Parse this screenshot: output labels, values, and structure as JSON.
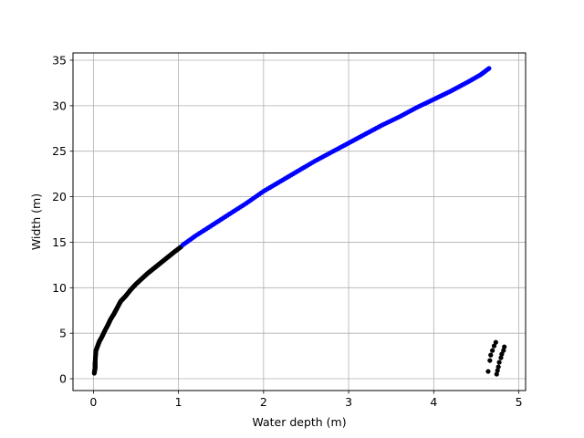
{
  "chart_data": {
    "type": "scatter",
    "title": "",
    "xlabel": "Water depth (m)",
    "ylabel": "Width (m)",
    "xlim": [
      -0.24,
      5.08
    ],
    "ylim": [
      -1.3,
      35.8
    ],
    "xticks": [
      0,
      1,
      2,
      3,
      4,
      5
    ],
    "yticks": [
      0,
      5,
      10,
      15,
      20,
      25,
      30,
      35
    ],
    "grid": true,
    "legend": "none",
    "colors": {
      "series_low": "#000000",
      "series_fit": "#0000ff",
      "grid": "#b0b0b0",
      "axes": "#000000"
    },
    "series": [
      {
        "color": "#000000",
        "points": [
          [
            0.01,
            0.6
          ],
          [
            0.02,
            1.2
          ],
          [
            0.02,
            1.8
          ],
          [
            0.03,
            3.1
          ],
          [
            0.05,
            3.6
          ],
          [
            0.07,
            4.1
          ],
          [
            0.1,
            4.6
          ],
          [
            0.13,
            5.2
          ],
          [
            0.17,
            5.9
          ],
          [
            0.2,
            6.5
          ],
          [
            0.24,
            7.1
          ],
          [
            0.28,
            7.8
          ],
          [
            0.32,
            8.5
          ],
          [
            0.38,
            9.1
          ],
          [
            0.44,
            9.8
          ],
          [
            0.5,
            10.4
          ],
          [
            0.57,
            11.0
          ],
          [
            0.64,
            11.6
          ],
          [
            0.72,
            12.2
          ],
          [
            0.8,
            12.8
          ],
          [
            0.88,
            13.4
          ],
          [
            0.96,
            14.0
          ],
          [
            1.03,
            14.5
          ]
        ]
      },
      {
        "color": "#0000ff",
        "points": [
          [
            1.05,
            14.7
          ],
          [
            1.2,
            15.7
          ],
          [
            1.4,
            16.9
          ],
          [
            1.6,
            18.1
          ],
          [
            1.8,
            19.3
          ],
          [
            2.0,
            20.6
          ],
          [
            2.2,
            21.7
          ],
          [
            2.4,
            22.8
          ],
          [
            2.6,
            23.9
          ],
          [
            2.8,
            24.9
          ],
          [
            3.0,
            25.9
          ],
          [
            3.2,
            26.9
          ],
          [
            3.4,
            27.9
          ],
          [
            3.6,
            28.8
          ],
          [
            3.8,
            29.8
          ],
          [
            4.0,
            30.7
          ],
          [
            4.2,
            31.6
          ],
          [
            4.4,
            32.6
          ],
          [
            4.55,
            33.4
          ],
          [
            4.65,
            34.1
          ]
        ]
      },
      {
        "color": "#000000",
        "points": [
          [
            4.64,
            0.8
          ],
          [
            4.66,
            2.0
          ],
          [
            4.67,
            2.6
          ],
          [
            4.69,
            3.1
          ],
          [
            4.71,
            3.6
          ],
          [
            4.73,
            4.0
          ],
          [
            4.74,
            0.5
          ],
          [
            4.75,
            0.9
          ],
          [
            4.76,
            1.3
          ],
          [
            4.77,
            1.8
          ],
          [
            4.79,
            2.3
          ],
          [
            4.8,
            2.7
          ],
          [
            4.82,
            3.1
          ],
          [
            4.83,
            3.5
          ]
        ]
      }
    ]
  }
}
